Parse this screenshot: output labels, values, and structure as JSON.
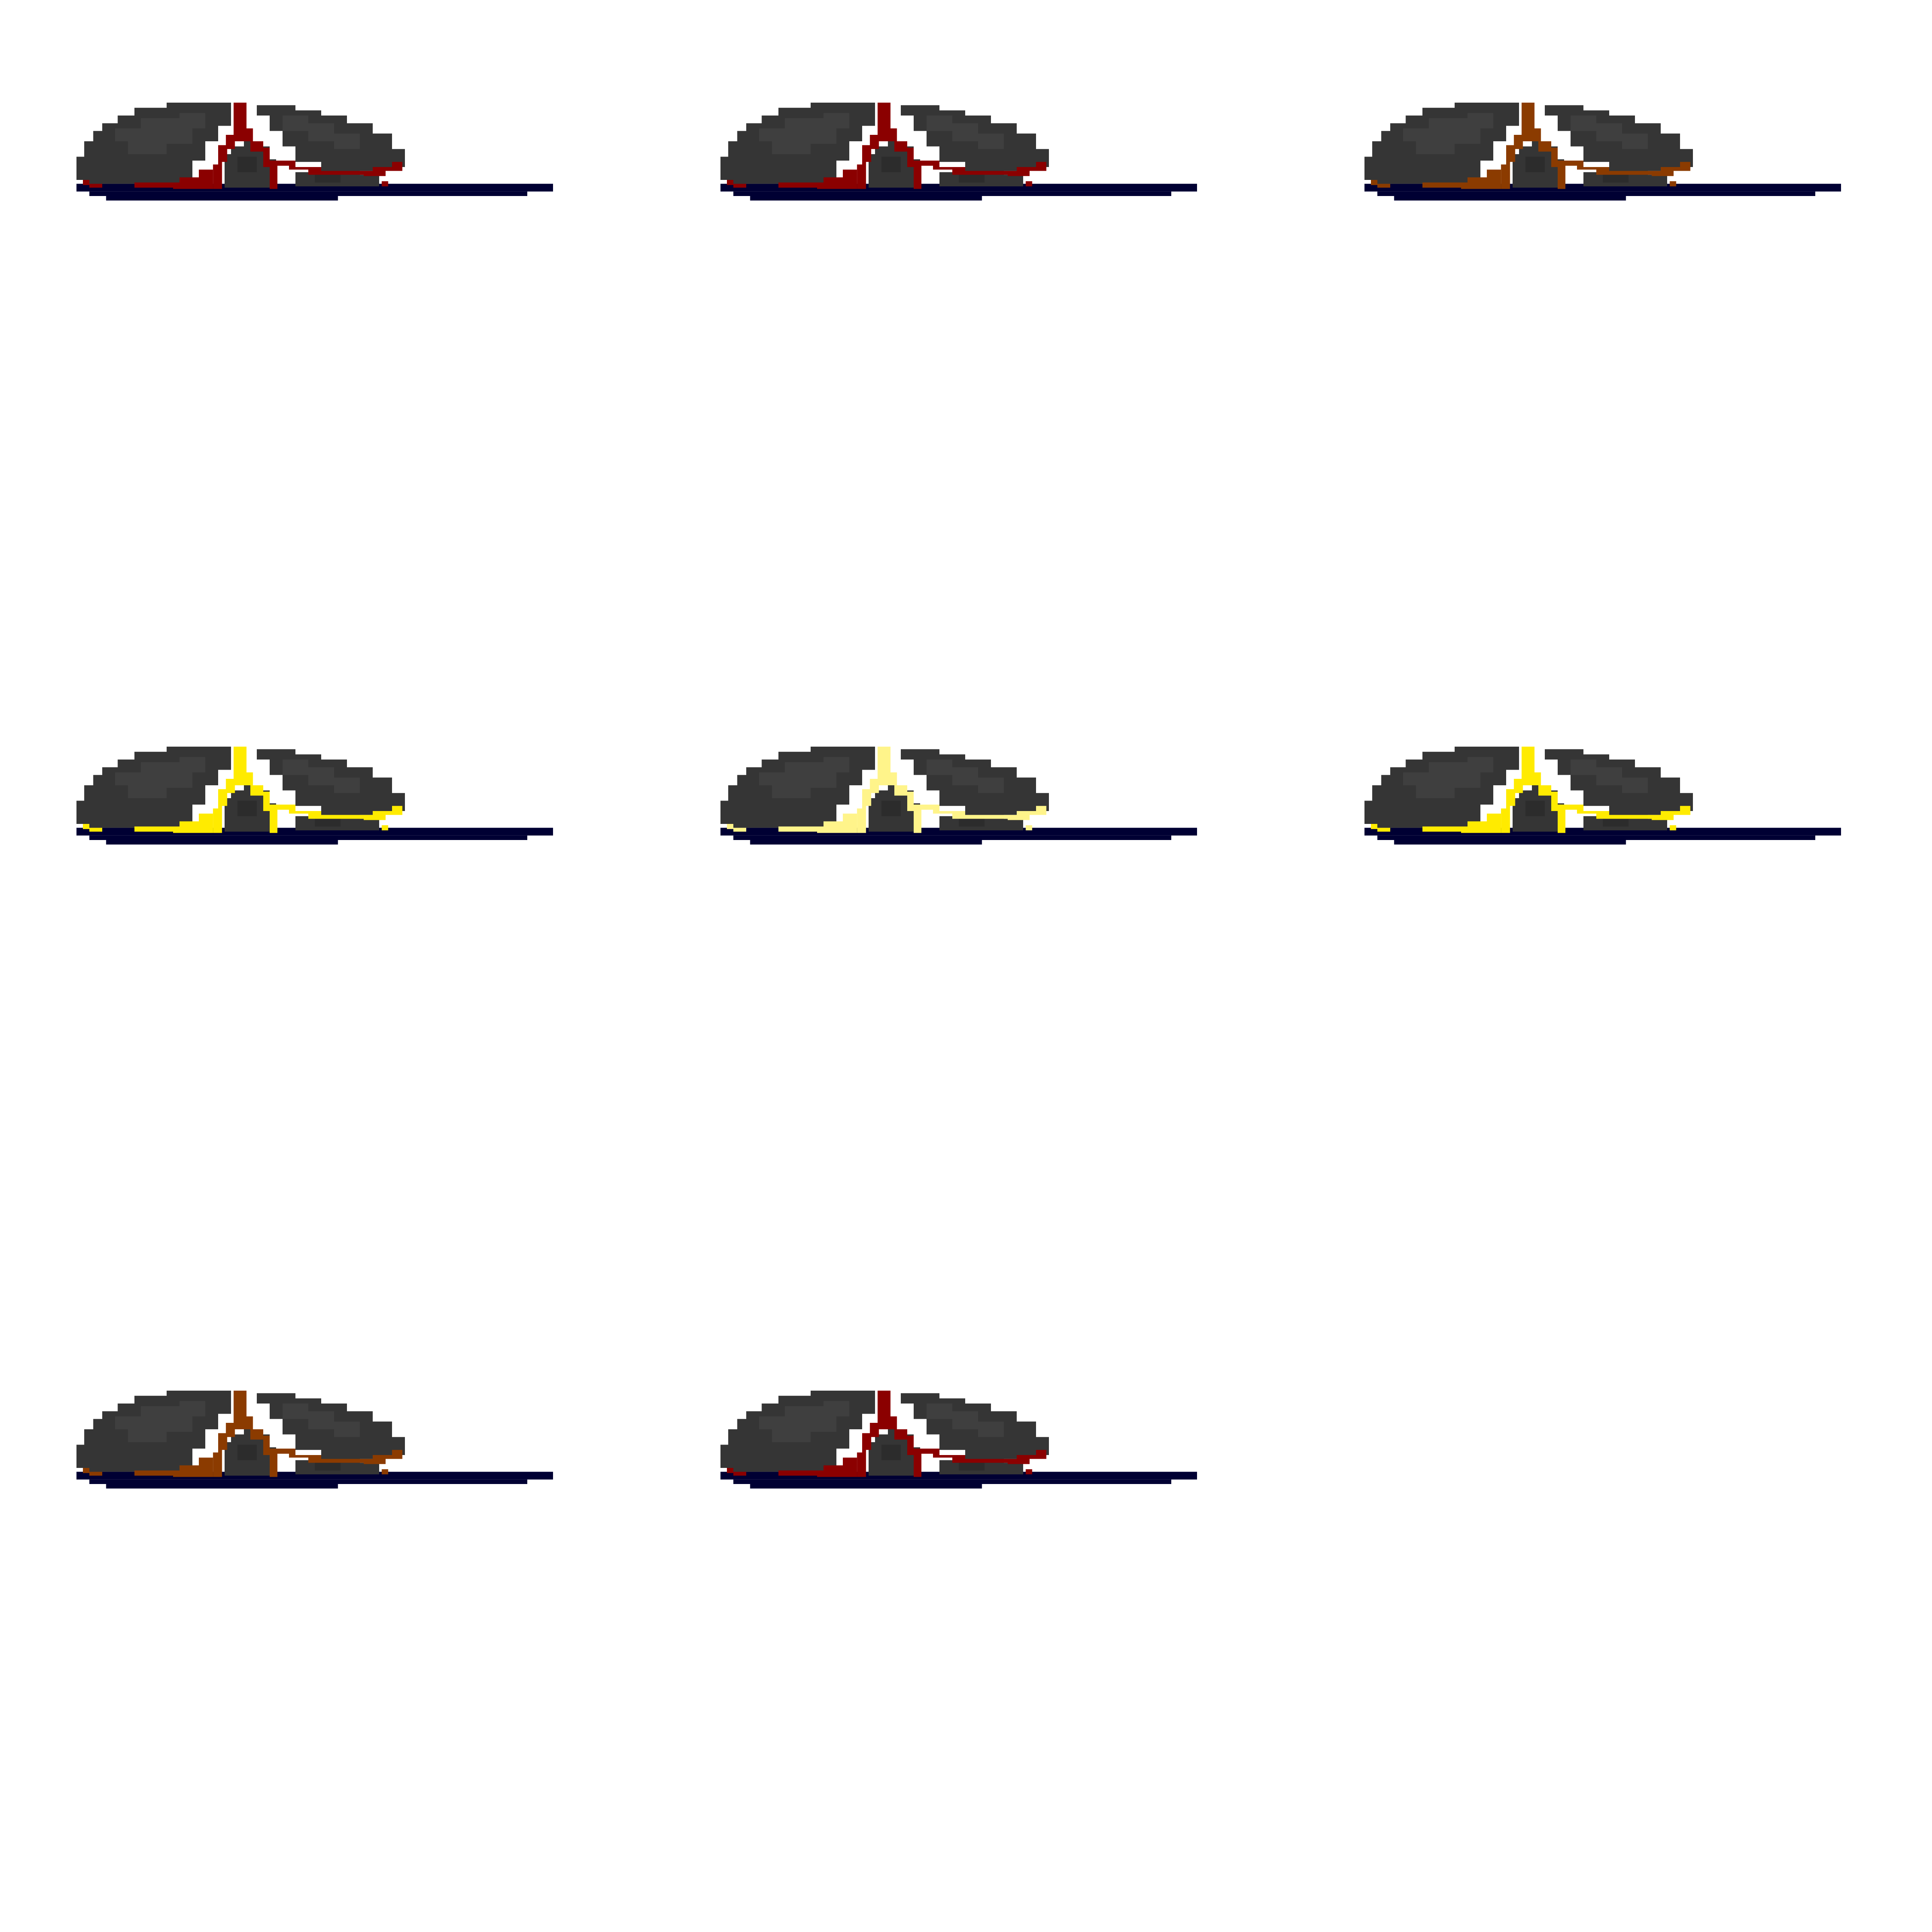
{
  "sprite_sheet": {
    "columns": 3,
    "rows": 3,
    "background": "#ffffff",
    "rock_colors": {
      "base": "#353535",
      "light": "#3f3f3f",
      "shadow": "#2c2c2c",
      "edge": "#000033"
    },
    "frames": [
      {
        "lava_color": "#8b0000"
      },
      {
        "lava_color": "#8b0000"
      },
      {
        "lava_color": "#8b3b00"
      },
      {
        "lava_color": "#ffeb00"
      },
      {
        "lava_color": "#fff48a"
      },
      {
        "lava_color": "#ffeb00"
      },
      {
        "lava_color": "#8b3b00"
      },
      {
        "lava_color": "#8b0000"
      }
    ]
  }
}
